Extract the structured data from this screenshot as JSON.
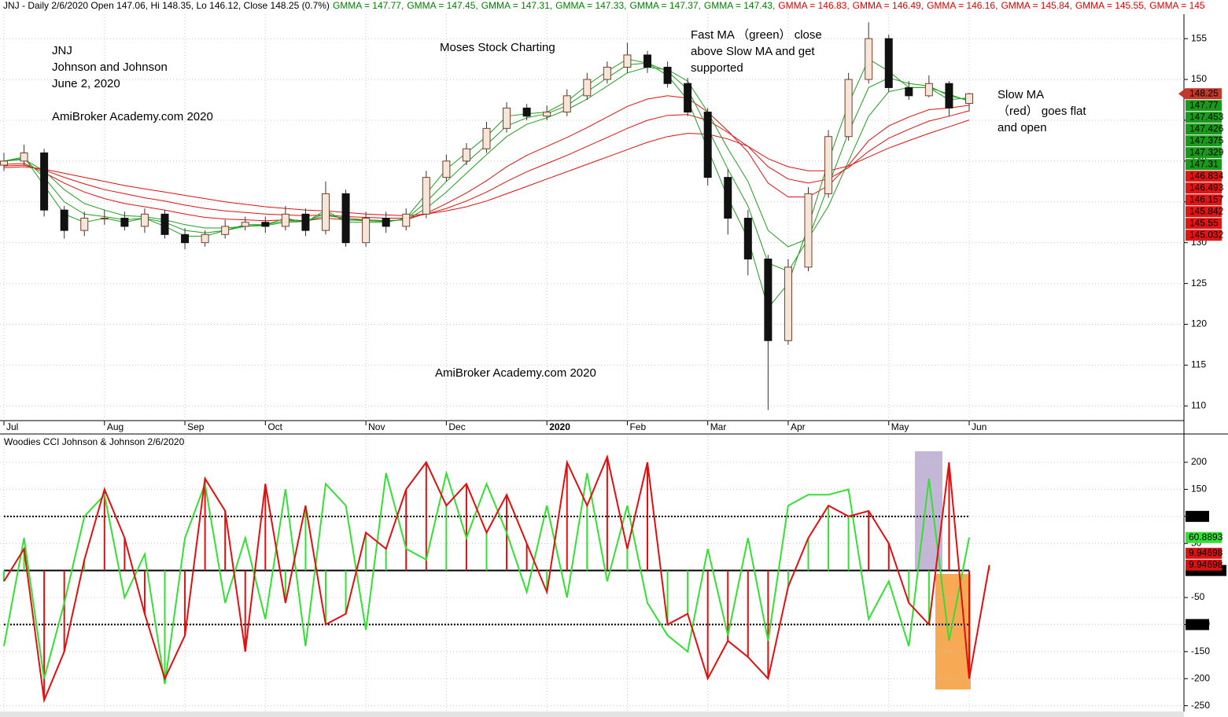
{
  "chart_data": [
    {
      "type": "candlestick",
      "header": [
        {
          "text": "JNJ - Daily 2/6/2020 Open 147.06, Hi 148.35, Lo 146.12, Close 148.25 (0.7%)",
          "color": "#000000"
        },
        {
          "text": "GMMA = 147.77,",
          "color": "#008000"
        },
        {
          "text": "GMMA = 147.45,",
          "color": "#008000"
        },
        {
          "text": "GMMA = 147.31,",
          "color": "#008000"
        },
        {
          "text": "GMMA = 147.33,",
          "color": "#008000"
        },
        {
          "text": "GMMA = 147.37,",
          "color": "#008000"
        },
        {
          "text": "GMMA = 147.43,",
          "color": "#008000"
        },
        {
          "text": "GMMA = 146.83,",
          "color": "#e00000"
        },
        {
          "text": "GMMA = 146.49,",
          "color": "#e00000"
        },
        {
          "text": "GMMA = 146.16,",
          "color": "#e00000"
        },
        {
          "text": "GMMA = 145.84,",
          "color": "#e00000"
        },
        {
          "text": "GMMA = 145.55,",
          "color": "#e00000"
        },
        {
          "text": "GMMA = 145",
          "color": "#e00000"
        }
      ],
      "annotations": [
        "JNJ",
        "Johnson and Johnson",
        "June 2, 2020",
        "AmiBroker Academy.com 2020",
        "Moses Stock Charting",
        "Fast MA （green） close",
        "above Slow MA and get",
        "supported",
        "Slow MA",
        "（red） goes flat",
        "and open",
        "AmiBroker Academy.com  2020"
      ],
      "annotation_color": "#e8302c",
      "categories": [
        "Jul",
        null,
        null,
        null,
        null,
        "Aug",
        null,
        null,
        null,
        "Sep",
        null,
        null,
        null,
        "Oct",
        null,
        null,
        null,
        null,
        "Nov",
        null,
        null,
        null,
        "Dec",
        null,
        null,
        null,
        null,
        "2020",
        null,
        null,
        null,
        "Feb",
        null,
        null,
        null,
        "Mar",
        null,
        null,
        null,
        "Apr",
        null,
        null,
        null,
        null,
        "May",
        null,
        null,
        null,
        "Jun"
      ],
      "open": [
        139.5,
        140,
        141,
        134,
        131.5,
        133,
        133,
        132,
        133.5,
        131,
        130,
        131,
        132,
        132.5,
        132,
        133.5,
        131.5,
        136,
        130,
        133,
        132,
        133.5,
        138,
        140,
        141.5,
        144,
        146.5,
        145.5,
        146,
        148,
        150,
        151.5,
        153,
        151.5,
        149.5,
        146,
        138,
        133,
        128,
        118,
        127,
        136,
        143,
        150,
        155,
        149,
        148,
        149.5,
        147.06
      ],
      "high": [
        141,
        142,
        141.5,
        134.5,
        133.8,
        134,
        133.8,
        134.2,
        134,
        131.8,
        131.5,
        132.8,
        133.2,
        133.2,
        134.5,
        134.2,
        137.5,
        136.5,
        133.8,
        133.8,
        134.2,
        138.8,
        140.8,
        142.2,
        144.8,
        147.2,
        147,
        146.8,
        148.8,
        150.8,
        152.2,
        154.5,
        153.5,
        152.2,
        150.2,
        146.5,
        139,
        134,
        128.5,
        128,
        136.8,
        143.8,
        150.8,
        157,
        155.5,
        149.8,
        150.5,
        149.8,
        148.35
      ],
      "low": [
        138.8,
        139.5,
        133.2,
        130.5,
        130.8,
        132.2,
        131.5,
        131.2,
        130.5,
        129.2,
        129.5,
        130.5,
        131.5,
        131.2,
        131.5,
        130.8,
        131,
        129.5,
        129.5,
        131.2,
        131.5,
        133,
        137.5,
        139.5,
        141,
        143.5,
        145,
        145,
        145.5,
        147.5,
        149.5,
        150.8,
        150.8,
        149,
        145.5,
        137,
        131,
        126,
        109.5,
        117.5,
        126.5,
        135.5,
        142.5,
        149.5,
        148.5,
        147.5,
        147.8,
        145.5,
        146.12
      ],
      "close": [
        140,
        141,
        134,
        131.5,
        133,
        133,
        132,
        133.5,
        131,
        130,
        131,
        132,
        132.5,
        132,
        133.5,
        131.5,
        136,
        130,
        133,
        132,
        133.5,
        138,
        140,
        141.5,
        144,
        146.5,
        145.5,
        146,
        148,
        150,
        151.5,
        153,
        151.5,
        149.5,
        146,
        138,
        133,
        128,
        118,
        127,
        136,
        143,
        150,
        155,
        149,
        148,
        149.5,
        146.5,
        148.25
      ],
      "series": [
        {
          "name": "GMMA",
          "color": "#1f9e1f",
          "values": [
            140,
            140.5,
            137,
            133.5,
            132.5,
            133,
            132.5,
            133,
            132,
            130.8,
            130.8,
            131.5,
            132.2,
            132.2,
            133,
            132.5,
            134,
            132.5,
            132.5,
            132.5,
            133,
            136,
            139,
            141,
            143,
            145.5,
            145.8,
            146,
            147.3,
            149.3,
            151,
            152.5,
            152,
            150.5,
            147.5,
            141.5,
            135.5,
            130.5,
            122,
            125,
            132,
            140,
            147,
            152.5,
            151,
            149,
            149,
            147.5,
            147.77
          ]
        },
        {
          "name": "GMMA",
          "color": "#1f9e1f",
          "values": [
            140,
            140.3,
            138,
            135,
            133.5,
            133.2,
            132.8,
            133,
            132.5,
            131.5,
            131.2,
            131.5,
            132,
            132.2,
            132.7,
            132.6,
            133.6,
            132.8,
            132.7,
            132.6,
            132.9,
            135,
            137.5,
            139.8,
            142,
            144.3,
            145.3,
            145.8,
            146.8,
            148.5,
            150.2,
            151.8,
            152,
            151,
            148.8,
            144,
            139,
            134.5,
            127.5,
            126.5,
            130.5,
            137,
            143.5,
            149,
            150.2,
            149.5,
            149.2,
            148,
            147.453
          ]
        },
        {
          "name": "GMMA",
          "color": "#1f9e1f",
          "values": [
            140,
            140.2,
            138.8,
            136.5,
            134.8,
            134,
            133.3,
            133.2,
            132.8,
            132.2,
            131.8,
            131.8,
            132,
            132.1,
            132.5,
            132.6,
            133.3,
            133,
            132.8,
            132.7,
            132.8,
            134.2,
            136.2,
            138.5,
            140.8,
            143,
            144.5,
            145.3,
            146.3,
            147.6,
            149.2,
            150.8,
            151.5,
            151.2,
            149.8,
            146,
            141.5,
            137.5,
            131.5,
            129.5,
            130.5,
            134.5,
            140,
            145.5,
            148.5,
            149,
            149,
            148.2,
            147.31
          ]
        },
        {
          "name": "GMMA",
          "color": "#e01010",
          "values": [
            139.6,
            139.7,
            138.6,
            137.3,
            136.2,
            135.4,
            134.8,
            134.4,
            134,
            133.5,
            133.1,
            132.9,
            132.8,
            132.7,
            132.8,
            132.7,
            133,
            132.8,
            132.8,
            132.7,
            132.8,
            133.6,
            134.8,
            136.1,
            137.6,
            139.3,
            140.7,
            141.8,
            142.9,
            144.1,
            145.4,
            146.7,
            147.6,
            148,
            147.7,
            146,
            143.7,
            141.1,
            137.3,
            135.6,
            135.6,
            137,
            139.5,
            142.5,
            144.3,
            145.4,
            146.3,
            146.5,
            146.834
          ]
        },
        {
          "name": "GMMA",
          "color": "#e01010",
          "values": [
            139.4,
            139.5,
            138.9,
            138,
            137.2,
            136.5,
            136,
            135.5,
            135.1,
            134.6,
            134.2,
            133.9,
            133.7,
            133.5,
            133.4,
            133.3,
            133.4,
            133.2,
            133.1,
            133,
            133,
            133.5,
            134.2,
            135.1,
            136.2,
            137.5,
            138.7,
            139.7,
            140.7,
            141.8,
            142.9,
            144,
            145,
            145.6,
            145.7,
            145,
            143.5,
            141.8,
            139.3,
            137.8,
            137.3,
            137.8,
            139.2,
            141.2,
            142.8,
            143.9,
            144.9,
            145.5,
            146.157
          ]
        },
        {
          "name": "GMMA",
          "color": "#e01010",
          "values": [
            139.2,
            139.3,
            139,
            138.5,
            138,
            137.5,
            137,
            136.6,
            136.2,
            135.8,
            135.4,
            135,
            134.7,
            134.4,
            134.2,
            134,
            133.9,
            133.7,
            133.5,
            133.4,
            133.3,
            133.5,
            133.9,
            134.4,
            135.1,
            136,
            136.9,
            137.8,
            138.7,
            139.6,
            140.5,
            141.4,
            142.3,
            143,
            143.4,
            143.3,
            142.7,
            141.8,
            140.3,
            139.3,
            138.8,
            138.8,
            139.4,
            140.5,
            141.6,
            142.5,
            143.4,
            144.2,
            145.032
          ]
        }
      ],
      "close_label": 148.25,
      "close_label_color": "#c0392b",
      "fast_labels": [
        147.77,
        147.453,
        147.426,
        147.375,
        147.329,
        147.31
      ],
      "slow_labels": [
        146.834,
        146.493,
        146.157,
        145.842,
        145.55,
        145.032
      ],
      "fast_label_color": "#1a9a1a",
      "slow_label_color": "#e01515",
      "ylim": [
        108.2,
        158
      ],
      "yticks": [
        110,
        115,
        120,
        125,
        130,
        135,
        140,
        145,
        150,
        155
      ],
      "grid": true
    },
    {
      "type": "line",
      "title": "Woodies CCI  Johnson & Johnson 2/6/2020",
      "series": [
        {
          "color": "#e01010",
          "values": [
            -20,
            40,
            -240,
            -150,
            20,
            150,
            60,
            -80,
            -200,
            -120,
            170,
            110,
            -150,
            160,
            -60,
            120,
            -100,
            -80,
            70,
            40,
            150,
            200,
            120,
            160,
            70,
            140,
            50,
            -40,
            200,
            120,
            210,
            40,
            200,
            -100,
            -80,
            -200,
            -130,
            -160,
            -200,
            -30,
            60,
            120,
            100,
            110,
            50,
            -60,
            -100,
            200,
            -200,
            9.94698
          ]
        },
        {
          "color": "#33e033",
          "values": [
            -140,
            60,
            -200,
            -60,
            100,
            140,
            -50,
            30,
            -210,
            60,
            160,
            -60,
            60,
            -90,
            150,
            -140,
            160,
            120,
            -110,
            180,
            40,
            20,
            180,
            60,
            160,
            70,
            -40,
            120,
            -50,
            180,
            -20,
            120,
            -60,
            -120,
            -150,
            40,
            -120,
            60,
            -130,
            120,
            140,
            140,
            150,
            -90,
            -20,
            -140,
            170,
            -130,
            60.8893
          ]
        }
      ],
      "histogram": true,
      "levels": [
        100,
        {
          "value": 0,
          "label": "0.00000"
        },
        -100
      ],
      "ylim": [
        -268,
        248
      ],
      "yticks": [
        -250,
        -200,
        -150,
        -100,
        -50,
        50,
        100,
        150,
        200
      ],
      "grid": true
    }
  ]
}
